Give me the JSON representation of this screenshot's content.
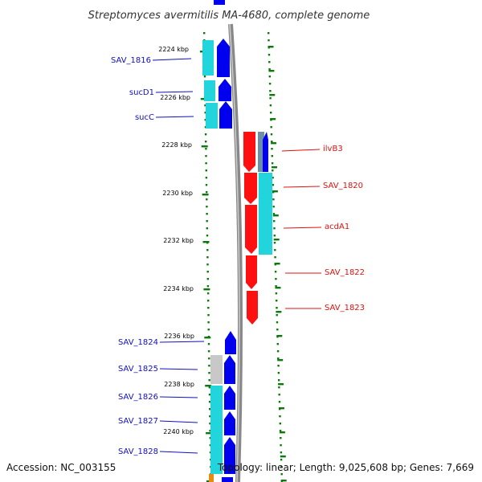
{
  "title": "Streptomyces avermitilis MA-4680, complete genome",
  "footer": {
    "accession": "Accession: NC_003155",
    "summary": "Topology: linear; Length: 9,025,608 bp; Genes: 7,669"
  },
  "ruler_ticks": [
    "2224 kbp",
    "2226 kbp",
    "2228 kbp",
    "2230 kbp",
    "2232 kbp",
    "2234 kbp",
    "2236 kbp",
    "2238 kbp",
    "2240 kbp"
  ],
  "left_genes": [
    "SAV_1816",
    "sucD1",
    "sucC",
    "SAV_1824",
    "SAV_1825",
    "SAV_1826",
    "SAV_1827",
    "SAV_1828"
  ],
  "right_genes": [
    "ilvB3",
    "SAV_1820",
    "acdA1",
    "SAV_1822",
    "SAV_1823"
  ],
  "colors": {
    "blue": "#0000ee",
    "cyan": "#22d4dc",
    "red": "#ff1010",
    "gray": "#c8c8c8",
    "tick_green": "#0a7a0a",
    "backbone": "#888888",
    "label_blue": "#1010c0",
    "label_red": "#e01010"
  }
}
